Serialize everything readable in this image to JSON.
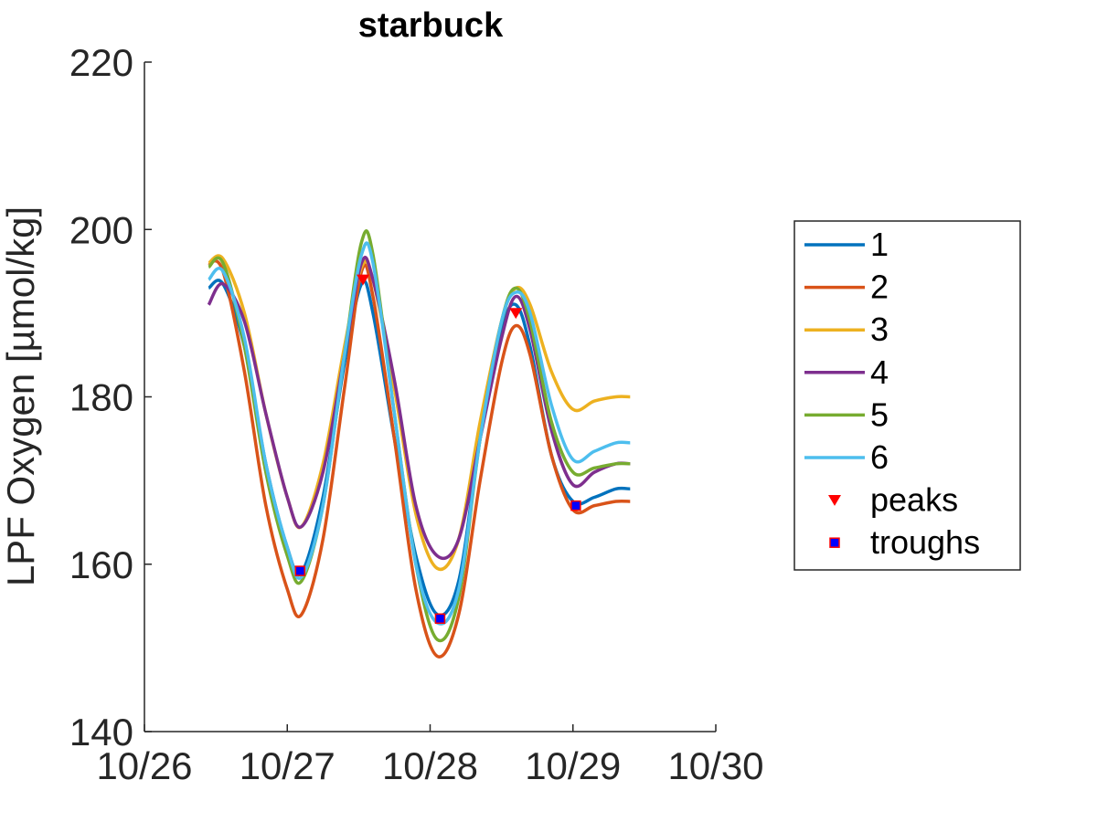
{
  "chart_data": {
    "type": "line",
    "title": "starbuck",
    "xlabel": "",
    "ylabel": "LPF Oxygen [µmol/kg]",
    "xlim": [
      "10/26",
      "10/30"
    ],
    "ylim": [
      140,
      220
    ],
    "xticks": [
      "10/26",
      "10/27",
      "10/28",
      "10/29",
      "10/30"
    ],
    "yticks": [
      140,
      160,
      180,
      200,
      220
    ],
    "grid": false,
    "legend_position": "right",
    "series": [
      {
        "name": "1",
        "color": "#0072BD",
        "points": [
          [
            0.45,
            193
          ],
          [
            0.55,
            193.5
          ],
          [
            0.7,
            186
          ],
          [
            0.85,
            172
          ],
          [
            1.0,
            162
          ],
          [
            1.1,
            159
          ],
          [
            1.25,
            168
          ],
          [
            1.4,
            184
          ],
          [
            1.52,
            193.5
          ],
          [
            1.6,
            190
          ],
          [
            1.75,
            175
          ],
          [
            1.9,
            161
          ],
          [
            2.05,
            154
          ],
          [
            2.2,
            158
          ],
          [
            2.35,
            175
          ],
          [
            2.5,
            188
          ],
          [
            2.6,
            191
          ],
          [
            2.7,
            186
          ],
          [
            2.85,
            173
          ],
          [
            3.0,
            167.5
          ],
          [
            3.15,
            168
          ],
          [
            3.3,
            169
          ],
          [
            3.4,
            169
          ]
        ]
      },
      {
        "name": "2",
        "color": "#D95319",
        "points": [
          [
            0.45,
            196
          ],
          [
            0.55,
            195
          ],
          [
            0.7,
            183
          ],
          [
            0.85,
            167
          ],
          [
            1.0,
            157
          ],
          [
            1.1,
            154
          ],
          [
            1.25,
            163
          ],
          [
            1.4,
            181
          ],
          [
            1.52,
            195
          ],
          [
            1.6,
            192
          ],
          [
            1.75,
            175
          ],
          [
            1.9,
            157
          ],
          [
            2.05,
            149
          ],
          [
            2.2,
            154
          ],
          [
            2.35,
            170
          ],
          [
            2.5,
            184
          ],
          [
            2.6,
            188.5
          ],
          [
            2.7,
            185
          ],
          [
            2.85,
            173
          ],
          [
            3.0,
            166.5
          ],
          [
            3.15,
            167
          ],
          [
            3.3,
            167.5
          ],
          [
            3.4,
            167.5
          ]
        ]
      },
      {
        "name": "3",
        "color": "#EDB120",
        "points": [
          [
            0.45,
            196
          ],
          [
            0.55,
            196.5
          ],
          [
            0.7,
            190
          ],
          [
            0.85,
            178
          ],
          [
            1.0,
            168
          ],
          [
            1.1,
            164.5
          ],
          [
            1.25,
            172
          ],
          [
            1.4,
            186
          ],
          [
            1.52,
            195.5
          ],
          [
            1.6,
            194
          ],
          [
            1.75,
            181
          ],
          [
            1.9,
            166
          ],
          [
            2.05,
            159.5
          ],
          [
            2.2,
            163
          ],
          [
            2.35,
            177
          ],
          [
            2.5,
            189
          ],
          [
            2.6,
            193
          ],
          [
            2.7,
            191
          ],
          [
            2.85,
            183
          ],
          [
            3.0,
            178.5
          ],
          [
            3.15,
            179.5
          ],
          [
            3.3,
            180
          ],
          [
            3.4,
            180
          ]
        ]
      },
      {
        "name": "4",
        "color": "#7E2F8E",
        "points": [
          [
            0.45,
            191
          ],
          [
            0.55,
            193.5
          ],
          [
            0.7,
            189
          ],
          [
            0.85,
            178
          ],
          [
            1.0,
            168
          ],
          [
            1.1,
            164.5
          ],
          [
            1.25,
            171
          ],
          [
            1.4,
            185
          ],
          [
            1.52,
            196
          ],
          [
            1.6,
            194
          ],
          [
            1.75,
            182
          ],
          [
            1.9,
            167
          ],
          [
            2.05,
            161
          ],
          [
            2.2,
            163
          ],
          [
            2.35,
            175
          ],
          [
            2.5,
            187
          ],
          [
            2.6,
            192
          ],
          [
            2.7,
            188
          ],
          [
            2.85,
            176
          ],
          [
            3.0,
            169.5
          ],
          [
            3.15,
            171
          ],
          [
            3.3,
            172
          ],
          [
            3.4,
            172
          ]
        ]
      },
      {
        "name": "5",
        "color": "#77AC30",
        "points": [
          [
            0.45,
            195.5
          ],
          [
            0.55,
            196
          ],
          [
            0.7,
            186
          ],
          [
            0.85,
            171
          ],
          [
            1.0,
            161
          ],
          [
            1.1,
            158
          ],
          [
            1.25,
            167
          ],
          [
            1.4,
            185
          ],
          [
            1.52,
            198.5
          ],
          [
            1.6,
            197
          ],
          [
            1.75,
            178
          ],
          [
            1.9,
            160
          ],
          [
            2.05,
            151
          ],
          [
            2.2,
            156
          ],
          [
            2.35,
            175
          ],
          [
            2.5,
            189
          ],
          [
            2.6,
            193
          ],
          [
            2.7,
            189
          ],
          [
            2.85,
            177
          ],
          [
            3.0,
            171
          ],
          [
            3.15,
            171.5
          ],
          [
            3.3,
            172
          ],
          [
            3.4,
            172
          ]
        ]
      },
      {
        "name": "6",
        "color": "#4DBEEE",
        "points": [
          [
            0.45,
            194
          ],
          [
            0.55,
            195
          ],
          [
            0.7,
            187
          ],
          [
            0.85,
            172
          ],
          [
            1.0,
            162
          ],
          [
            1.1,
            158.5
          ],
          [
            1.25,
            167
          ],
          [
            1.4,
            185
          ],
          [
            1.52,
            197
          ],
          [
            1.6,
            196
          ],
          [
            1.75,
            178
          ],
          [
            1.9,
            160
          ],
          [
            2.05,
            153
          ],
          [
            2.2,
            157
          ],
          [
            2.35,
            175
          ],
          [
            2.5,
            189
          ],
          [
            2.6,
            192.5
          ],
          [
            2.7,
            190
          ],
          [
            2.85,
            179
          ],
          [
            3.0,
            172.5
          ],
          [
            3.15,
            173.5
          ],
          [
            3.3,
            174.5
          ],
          [
            3.4,
            174.5
          ]
        ]
      }
    ],
    "peaks": {
      "name": "peaks",
      "color": "#FF0000",
      "points": [
        [
          1.53,
          194
        ],
        [
          2.6,
          190
        ]
      ]
    },
    "troughs": {
      "name": "troughs",
      "color": "#0000FF",
      "edge_color": "#FF0000",
      "points": [
        [
          1.09,
          159.2
        ],
        [
          2.07,
          153.5
        ],
        [
          3.02,
          167
        ]
      ]
    }
  }
}
